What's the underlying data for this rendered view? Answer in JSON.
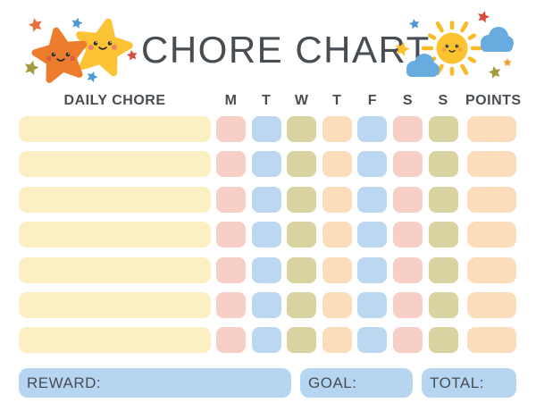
{
  "title": "CHORE CHART",
  "table": {
    "chore_header": "DAILY CHORE",
    "points_header": "POINTS",
    "days": [
      "M",
      "T",
      "W",
      "T",
      "F",
      "S",
      "S"
    ],
    "day_colors": [
      "pink",
      "blue",
      "olive",
      "peach",
      "blue",
      "pink",
      "olive"
    ],
    "row_count": 7
  },
  "footer": {
    "reward_label": "REWARD:",
    "goal_label": "GOAL:",
    "total_label": "TOTAL:"
  },
  "palette": {
    "text": "#474D52",
    "chore_bar": "#FCEFC4",
    "pink": "#F7CFC7",
    "blue": "#BCD8F0",
    "olive": "#D8D3A0",
    "peach": "#FCDDBB",
    "footer_field": "#B5D5F0",
    "big_star_orange": "#ED7D2D",
    "big_star_yellow": "#FCC334",
    "sun_yellow": "#FBC32F",
    "cloud_blue": "#68ACDF",
    "mini_star_red": "#DD4A3C",
    "mini_star_blue": "#4E97D9",
    "mini_star_olive": "#A59A40",
    "mini_star_orange": "#F29B38"
  },
  "decorations": {
    "left": "kawaii-stars-icon",
    "right": "kawaii-sun-clouds-icon"
  }
}
